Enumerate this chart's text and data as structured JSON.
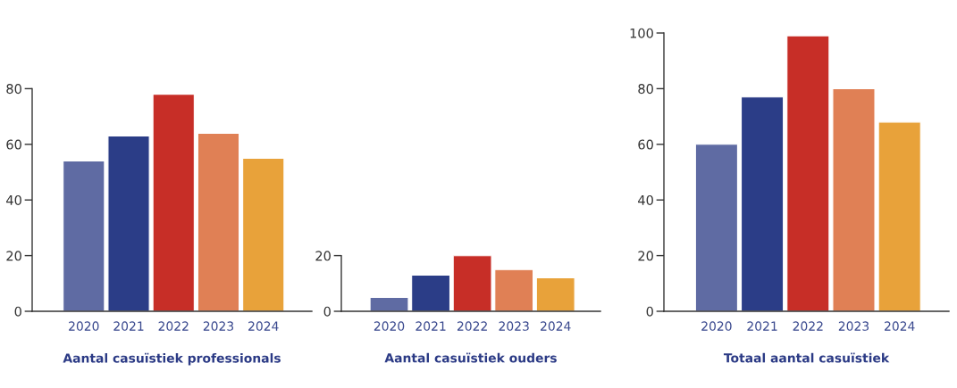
{
  "chart_data": [
    {
      "type": "bar",
      "xlabel": "Aantal casuïstiek professionals",
      "categories": [
        "2020",
        "2021",
        "2022",
        "2023",
        "2024"
      ],
      "values": [
        54,
        63,
        78,
        64,
        55
      ],
      "colors": [
        "#5f6ba3",
        "#2b3d87",
        "#c72e27",
        "#e08055",
        "#e8a23a"
      ],
      "ylim": [
        0,
        80
      ],
      "yticks": [
        0,
        20,
        40,
        60,
        80
      ]
    },
    {
      "type": "bar",
      "xlabel": "Aantal casuïstiek ouders",
      "categories": [
        "2020",
        "2021",
        "2022",
        "2023",
        "2024"
      ],
      "values": [
        5,
        13,
        20,
        15,
        12
      ],
      "colors": [
        "#5f6ba3",
        "#2b3d87",
        "#c72e27",
        "#e08055",
        "#e8a23a"
      ],
      "ylim": [
        0,
        20
      ],
      "yticks": [
        0,
        20
      ]
    },
    {
      "type": "bar",
      "xlabel": "Totaal aantal casuïstiek",
      "categories": [
        "2020",
        "2021",
        "2022",
        "2023",
        "2024"
      ],
      "values": [
        60,
        77,
        99,
        80,
        68
      ],
      "colors": [
        "#5f6ba3",
        "#2b3d87",
        "#c72e27",
        "#e08055",
        "#e8a23a"
      ],
      "ylim": [
        0,
        100
      ],
      "yticks": [
        0,
        20,
        40,
        60,
        80,
        100
      ]
    }
  ]
}
